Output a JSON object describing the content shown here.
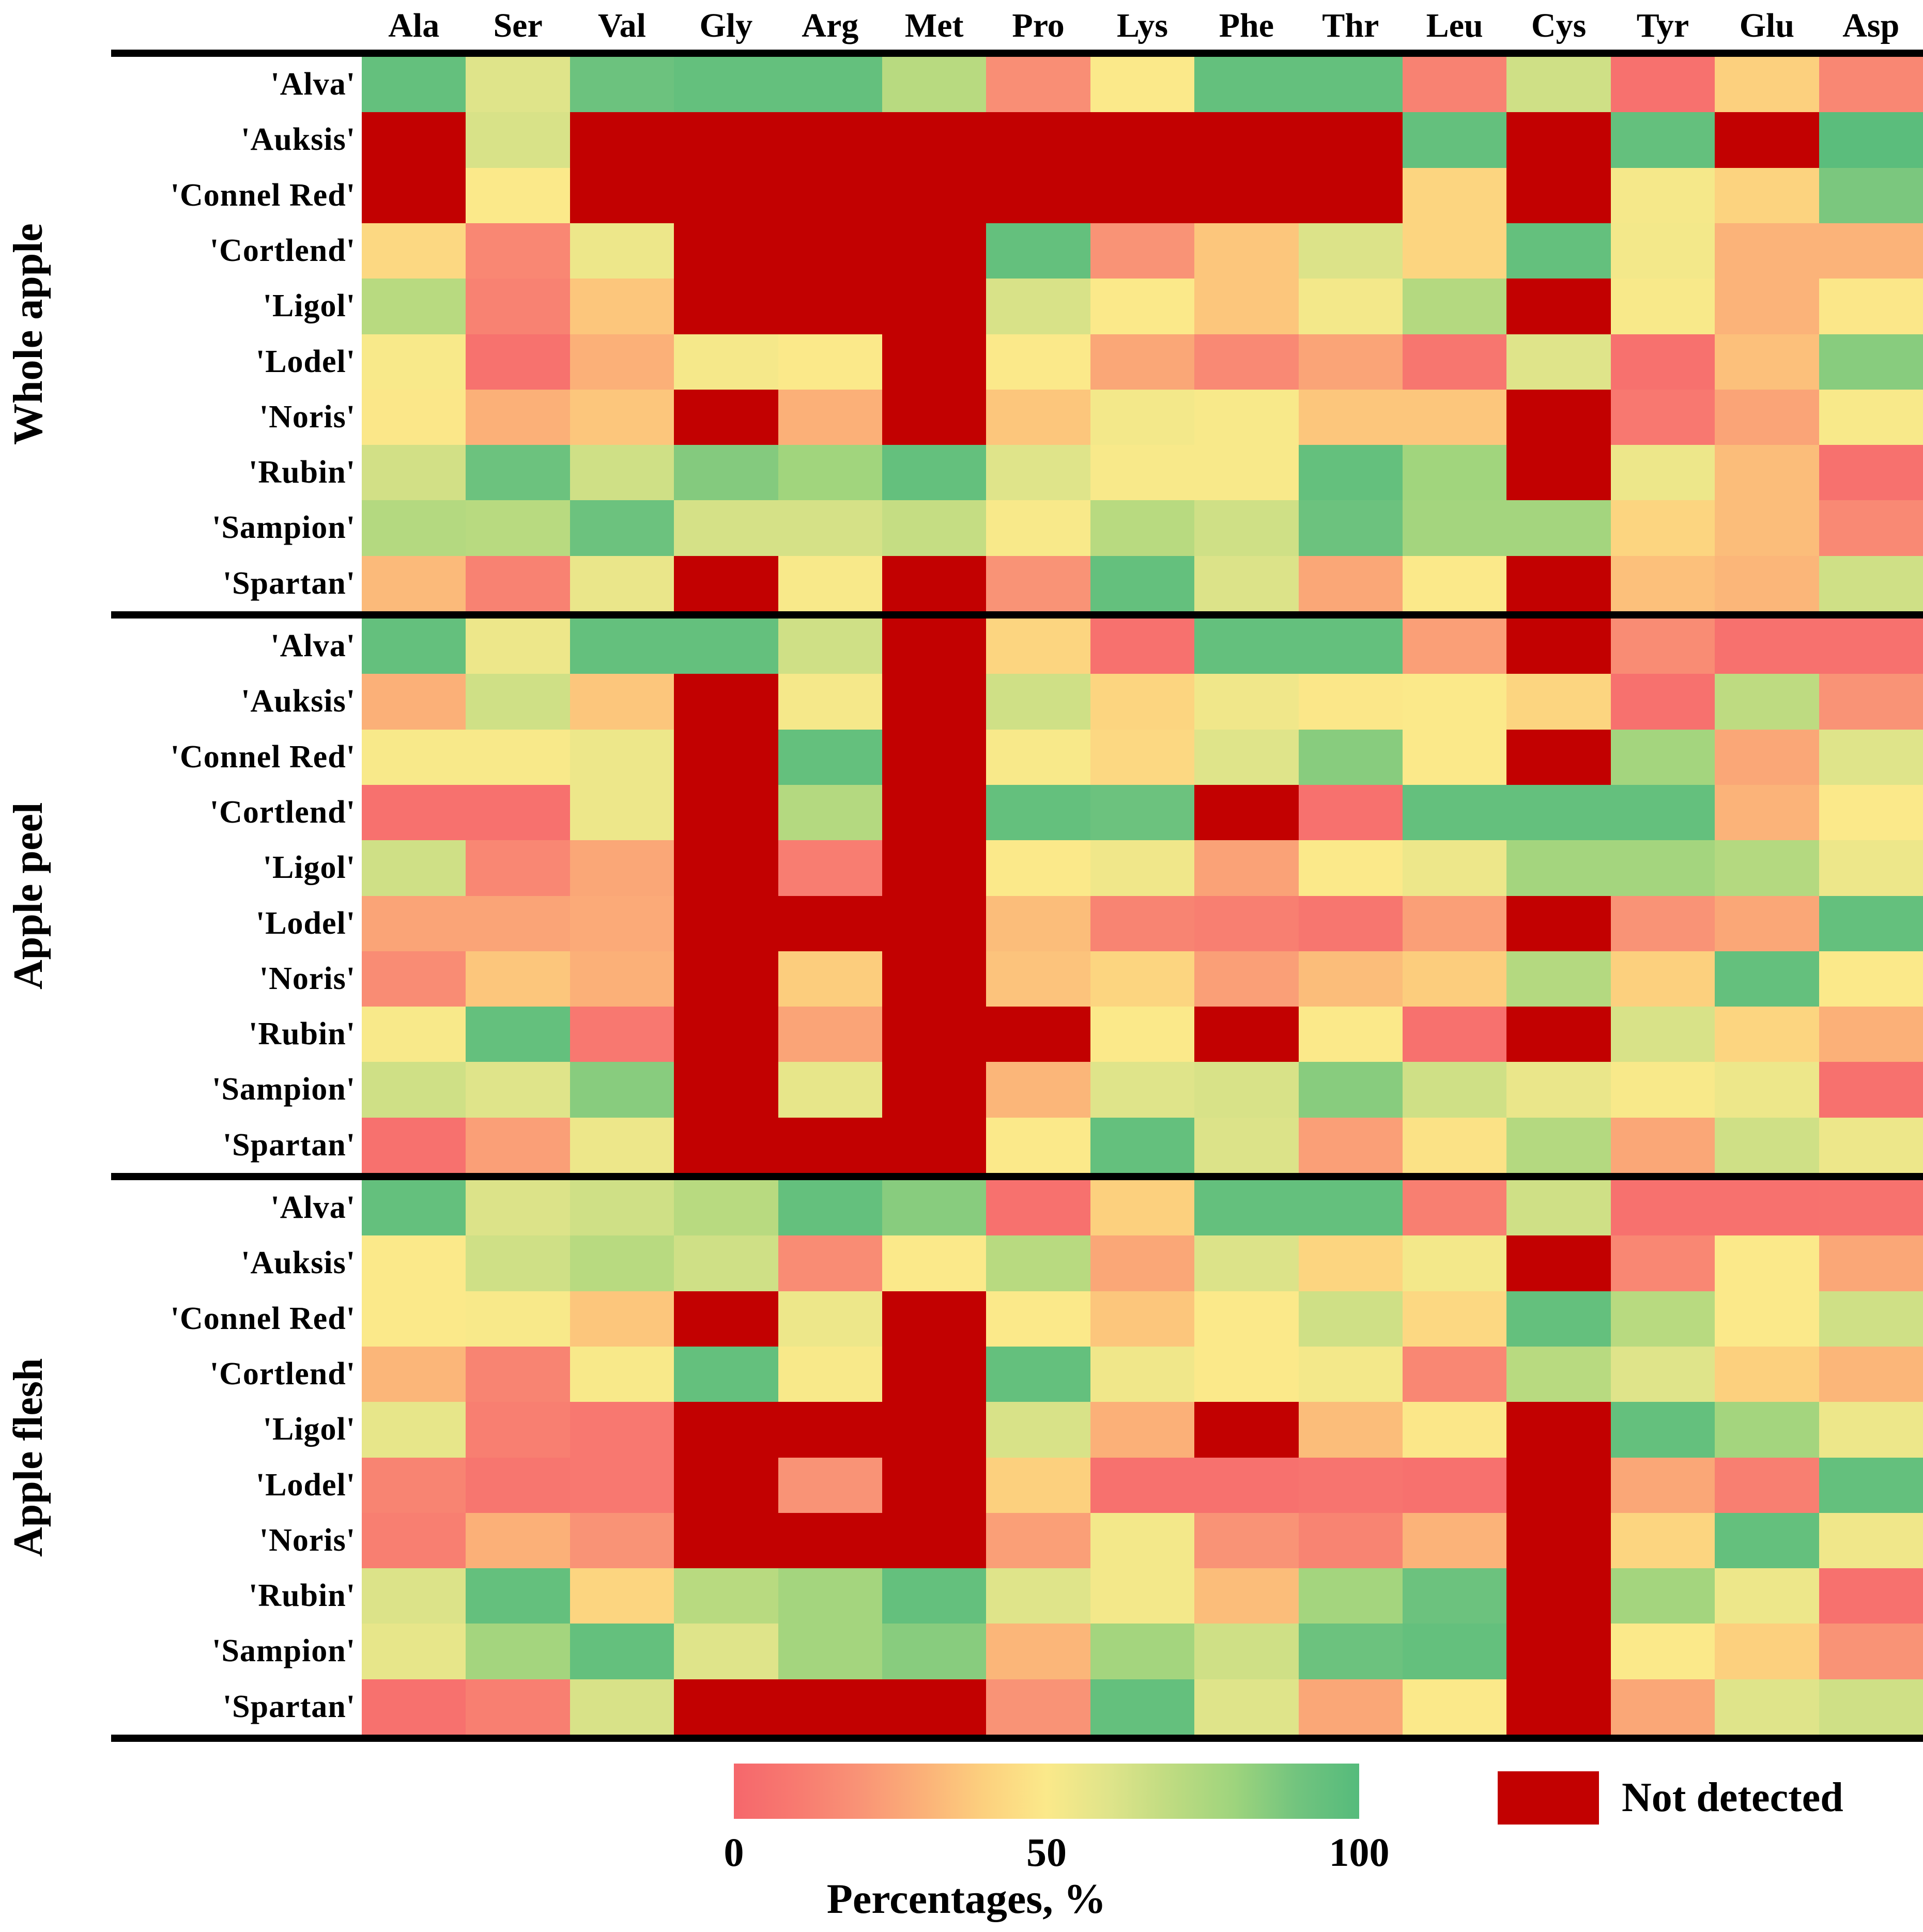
{
  "chart_data": {
    "type": "heatmap",
    "title": "",
    "columns": [
      "Ala",
      "Ser",
      "Val",
      "Gly",
      "Arg",
      "Met",
      "Pro",
      "Lys",
      "Phe",
      "Thr",
      "Leu",
      "Cys",
      "Tyr",
      "Glu",
      "Asp"
    ],
    "value_meaning": "percentage 0-100 estimated from RdYlGn color scale; null = not detected",
    "groups": [
      {
        "label": "Whole apple",
        "rows": [
          {
            "label": "'Alva'",
            "values": [
              95,
              60,
              92,
              95,
              95,
              72,
              18,
              50,
              95,
              95,
              13,
              65,
              5,
              40,
              15
            ]
          },
          {
            "label": "'Auksis'",
            "values": [
              null,
              62,
              null,
              null,
              null,
              null,
              null,
              null,
              null,
              null,
              95,
              null,
              95,
              null,
              98
            ]
          },
          {
            "label": "'Connel Red'",
            "values": [
              null,
              50,
              null,
              null,
              null,
              null,
              null,
              null,
              null,
              null,
              42,
              null,
              52,
              41,
              88
            ]
          },
          {
            "label": "'Cortlend'",
            "values": [
              43,
              15,
              55,
              null,
              null,
              null,
              95,
              20,
              37,
              61,
              42,
              95,
              53,
              31,
              31
            ]
          },
          {
            "label": "'Ligol'",
            "values": [
              72,
              13,
              37,
              null,
              null,
              null,
              62,
              50,
              37,
              53,
              73,
              null,
              51,
              31,
              49
            ]
          },
          {
            "label": "'Lodel'",
            "values": [
              51,
              6,
              30,
              52,
              50,
              null,
              50,
              27,
              16,
              26,
              8,
              60,
              5,
              35,
              85
            ]
          },
          {
            "label": "'Noris'",
            "values": [
              49,
              30,
              37,
              null,
              30,
              null,
              37,
              53,
              51,
              37,
              37,
              null,
              9,
              26,
              51
            ]
          },
          {
            "label": "'Rubin'",
            "values": [
              64,
              92,
              65,
              86,
              79,
              95,
              60,
              51,
              51,
              95,
              79,
              null,
              55,
              34,
              5
            ]
          },
          {
            "label": "'Sampion'",
            "values": [
              73,
              72,
              92,
              63,
              63,
              68,
              51,
              72,
              65,
              92,
              78,
              78,
              42,
              34,
              16
            ]
          },
          {
            "label": "'Spartan'",
            "values": [
              33,
              13,
              56,
              null,
              51,
              null,
              20,
              95,
              61,
              27,
              50,
              null,
              35,
              32,
              65
            ]
          }
        ]
      },
      {
        "label": "Apple peel",
        "rows": [
          {
            "label": "'Alva'",
            "values": [
              95,
              55,
              95,
              95,
              65,
              null,
              42,
              5,
              95,
              95,
              24,
              null,
              17,
              5,
              5
            ]
          },
          {
            "label": "'Auksis'",
            "values": [
              30,
              65,
              37,
              null,
              52,
              null,
              65,
              42,
              54,
              49,
              50,
              42,
              5,
              70,
              20
            ]
          },
          {
            "label": "'Connel Red'",
            "values": [
              51,
              51,
              55,
              null,
              95,
              null,
              51,
              43,
              60,
              85,
              50,
              null,
              78,
              27,
              60
            ]
          },
          {
            "label": "'Cortlend'",
            "values": [
              5,
              5,
              55,
              null,
              73,
              null,
              95,
              92,
              null,
              5,
              95,
              95,
              95,
              31,
              50
            ]
          },
          {
            "label": "'Ligol'",
            "values": [
              65,
              15,
              27,
              null,
              11,
              null,
              50,
              54,
              25,
              50,
              55,
              78,
              78,
              73,
              55
            ]
          },
          {
            "label": "'Lodel'",
            "values": [
              26,
              26,
              28,
              null,
              null,
              null,
              34,
              14,
              12,
              8,
              24,
              null,
              20,
              27,
              95
            ]
          },
          {
            "label": "'Noris'",
            "values": [
              17,
              37,
              30,
              null,
              39,
              null,
              36,
              42,
              24,
              34,
              39,
              73,
              40,
              95,
              50
            ]
          },
          {
            "label": "'Rubin'",
            "values": [
              51,
              95,
              9,
              null,
              26,
              null,
              null,
              50,
              null,
              50,
              5,
              null,
              62,
              42,
              30
            ]
          },
          {
            "label": "'Sampion'",
            "values": [
              65,
              60,
              85,
              null,
              57,
              null,
              32,
              60,
              62,
              85,
              65,
              56,
              51,
              55,
              5
            ]
          },
          {
            "label": "'Spartan'",
            "values": [
              5,
              24,
              55,
              null,
              null,
              null,
              50,
              95,
              61,
              24,
              47,
              73,
              27,
              65,
              55
            ]
          }
        ]
      },
      {
        "label": "Apple flesh",
        "rows": [
          {
            "label": "'Alva'",
            "values": [
              95,
              61,
              65,
              72,
              95,
              85,
              5,
              40,
              95,
              95,
              12,
              65,
              5,
              5,
              6
            ]
          },
          {
            "label": "'Auksis'",
            "values": [
              50,
              65,
              72,
              65,
              17,
              50,
              72,
              27,
              61,
              42,
              53,
              null,
              15,
              50,
              27
            ]
          },
          {
            "label": "'Connel Red'",
            "values": [
              50,
              51,
              37,
              null,
              55,
              null,
              50,
              37,
              50,
              65,
              43,
              95,
              72,
              50,
              65
            ]
          },
          {
            "label": "'Cortlend'",
            "values": [
              32,
              14,
              51,
              95,
              51,
              null,
              95,
              54,
              50,
              53,
              15,
              72,
              60,
              40,
              32
            ]
          },
          {
            "label": "'Ligol'",
            "values": [
              57,
              12,
              9,
              null,
              null,
              null,
              62,
              30,
              null,
              34,
              49,
              null,
              95,
              78,
              55
            ]
          },
          {
            "label": "'Lodel'",
            "values": [
              14,
              8,
              9,
              null,
              20,
              null,
              40,
              5,
              5,
              7,
              5,
              null,
              27,
              12,
              95
            ]
          },
          {
            "label": "'Noris'",
            "values": [
              12,
              30,
              20,
              null,
              null,
              null,
              24,
              53,
              20,
              14,
              31,
              null,
              42,
              95,
              54
            ]
          },
          {
            "label": "'Rubin'",
            "values": [
              61,
              95,
              42,
              72,
              78,
              95,
              60,
              53,
              34,
              78,
              92,
              null,
              78,
              55,
              5
            ]
          },
          {
            "label": "'Sampion'",
            "values": [
              57,
              78,
              95,
              60,
              78,
              85,
              32,
              78,
              65,
              92,
              95,
              null,
              50,
              40,
              20
            ]
          },
          {
            "label": "'Spartan'",
            "values": [
              5,
              12,
              62,
              null,
              null,
              null,
              20,
              95,
              60,
              27,
              50,
              null,
              27,
              60,
              65
            ]
          }
        ]
      }
    ],
    "colorbar": {
      "label": "Percentages, %",
      "ticks": [
        "0",
        "50",
        "100"
      ],
      "min": 0,
      "max": 100,
      "colormap": [
        [
          0,
          "#f5676c"
        ],
        [
          10,
          "#f87a70"
        ],
        [
          20,
          "#f99376"
        ],
        [
          30,
          "#fbb078"
        ],
        [
          40,
          "#fcd07e"
        ],
        [
          50,
          "#fbe98a"
        ],
        [
          60,
          "#dfe48a"
        ],
        [
          70,
          "#bedb81"
        ],
        [
          80,
          "#9ed47d"
        ],
        [
          90,
          "#72c47e"
        ],
        [
          100,
          "#55bb7c"
        ]
      ]
    },
    "legend_not_detected": {
      "label": "Not detected",
      "color": "#c20101"
    },
    "frame_color": "#000000"
  }
}
